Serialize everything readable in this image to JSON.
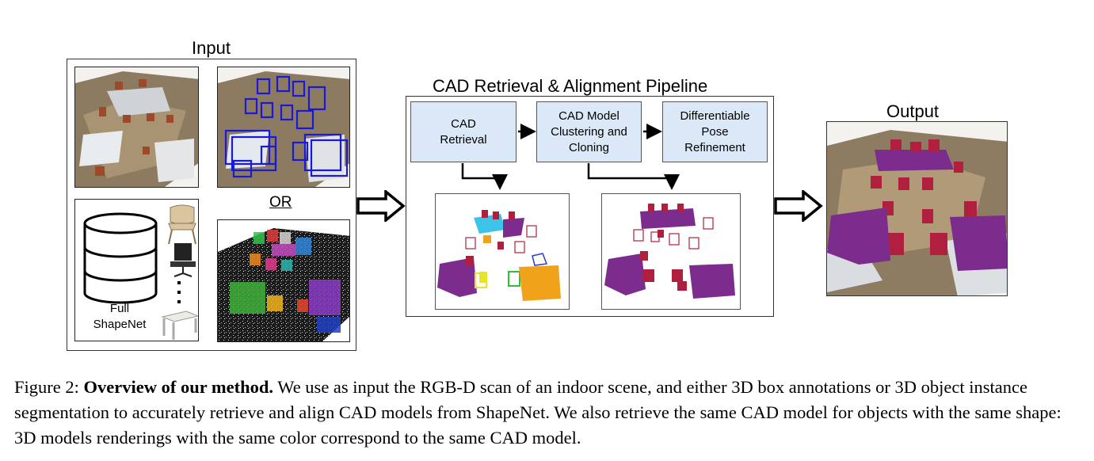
{
  "input": {
    "title": "Input",
    "or_label": "OR",
    "shapenet_label": "Full\nShapeNet"
  },
  "pipeline": {
    "title": "CAD Retrieval & Alignment Pipeline",
    "stages": [
      {
        "label": "CAD\nRetrieval"
      },
      {
        "label": "CAD Model\nClustering and\nCloning"
      },
      {
        "label": "Differentiable\nPose\nRefinement"
      }
    ]
  },
  "output": {
    "title": "Output"
  },
  "caption": {
    "figure_label": "Figure 2:",
    "bold_title": "Overview of our method.",
    "text": " We use as input the RGB-D scan of an indoor scene, and either 3D box annotations or 3D object instance segmentation to accurately retrieve and align CAD models from ShapeNet. We also retrieve the same CAD model for objects with the same shape: 3D models renderings with the same color correspond to the same CAD model."
  },
  "colors": {
    "stage_fill": "#dbe8f7",
    "purple": "#7b2c8c",
    "crimson": "#b0203e",
    "bbox_blue": "#1a1ad6",
    "scene_brown": "#8a7a62"
  }
}
